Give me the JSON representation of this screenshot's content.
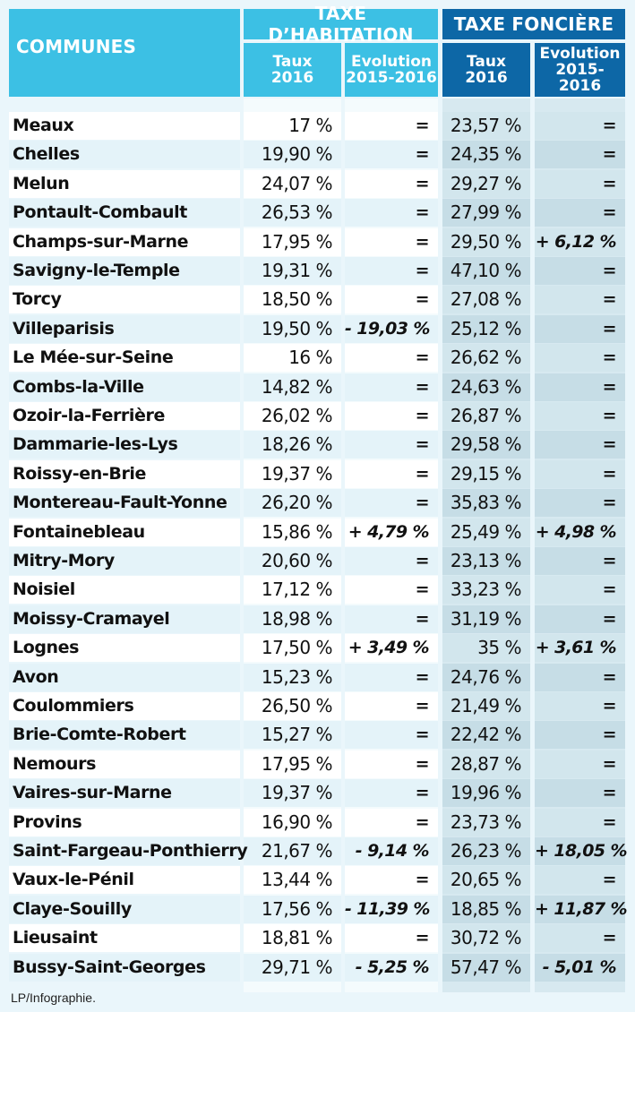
{
  "header": {
    "communes": "COMMUNES",
    "th_group": "TAXE D’HABITATION",
    "tf_group": "TAXE FONCIÈRE",
    "taux": "Taux",
    "year": "2016",
    "evolution": "Evolution",
    "period": "2015-2016"
  },
  "colors": {
    "light_blue": "#3cc0e4",
    "dark_blue": "#0d67a6",
    "page_bg": "#eaf6fb",
    "white_cell": "#ffffff",
    "tf_cell": "#cfe4ec"
  },
  "source": "LP/Infographie.",
  "chart_data": {
    "type": "table",
    "columns": [
      "COMMUNES",
      "Taxe d’habitation – Taux 2016",
      "Taxe d’habitation – Evolution 2015-2016",
      "Taxe foncière – Taux 2016",
      "Taxe foncière – Evolution 2015-2016"
    ],
    "rows": [
      {
        "commune": "Meaux",
        "th_rate": "17 %",
        "th_evo": "=",
        "tf_rate": "23,57 %",
        "tf_evo": "="
      },
      {
        "commune": "Chelles",
        "th_rate": "19,90 %",
        "th_evo": "=",
        "tf_rate": "24,35 %",
        "tf_evo": "="
      },
      {
        "commune": "Melun",
        "th_rate": "24,07 %",
        "th_evo": "=",
        "tf_rate": "29,27 %",
        "tf_evo": "="
      },
      {
        "commune": "Pontault-Combault",
        "th_rate": "26,53 %",
        "th_evo": "=",
        "tf_rate": "27,99 %",
        "tf_evo": "="
      },
      {
        "commune": "Champs-sur-Marne",
        "th_rate": "17,95 %",
        "th_evo": "=",
        "tf_rate": "29,50 %",
        "tf_evo": "+ 6,12 %"
      },
      {
        "commune": "Savigny-le-Temple",
        "th_rate": "19,31 %",
        "th_evo": "=",
        "tf_rate": "47,10 %",
        "tf_evo": "="
      },
      {
        "commune": "Torcy",
        "th_rate": "18,50 %",
        "th_evo": "=",
        "tf_rate": "27,08 %",
        "tf_evo": "="
      },
      {
        "commune": "Villeparisis",
        "th_rate": "19,50 %",
        "th_evo": "- 19,03 %",
        "tf_rate": "25,12 %",
        "tf_evo": "="
      },
      {
        "commune": "Le Mée-sur-Seine",
        "th_rate": "16 %",
        "th_evo": "=",
        "tf_rate": "26,62 %",
        "tf_evo": "="
      },
      {
        "commune": "Combs-la-Ville",
        "th_rate": "14,82 %",
        "th_evo": "=",
        "tf_rate": "24,63 %",
        "tf_evo": "="
      },
      {
        "commune": "Ozoir-la-Ferrière",
        "th_rate": "26,02 %",
        "th_evo": "=",
        "tf_rate": "26,87 %",
        "tf_evo": "="
      },
      {
        "commune": "Dammarie-les-Lys",
        "th_rate": "18,26 %",
        "th_evo": "=",
        "tf_rate": "29,58 %",
        "tf_evo": "="
      },
      {
        "commune": "Roissy-en-Brie",
        "th_rate": "19,37 %",
        "th_evo": "=",
        "tf_rate": "29,15 %",
        "tf_evo": "="
      },
      {
        "commune": "Montereau-Fault-Yonne",
        "th_rate": "26,20 %",
        "th_evo": "=",
        "tf_rate": "35,83 %",
        "tf_evo": "="
      },
      {
        "commune": "Fontainebleau",
        "th_rate": "15,86 %",
        "th_evo": "+ 4,79 %",
        "tf_rate": "25,49 %",
        "tf_evo": "+ 4,98 %"
      },
      {
        "commune": "Mitry-Mory",
        "th_rate": "20,60 %",
        "th_evo": "=",
        "tf_rate": "23,13 %",
        "tf_evo": "="
      },
      {
        "commune": "Noisiel",
        "th_rate": "17,12 %",
        "th_evo": "=",
        "tf_rate": "33,23 %",
        "tf_evo": "="
      },
      {
        "commune": "Moissy-Cramayel",
        "th_rate": "18,98 %",
        "th_evo": "=",
        "tf_rate": "31,19 %",
        "tf_evo": "="
      },
      {
        "commune": "Lognes",
        "th_rate": "17,50 %",
        "th_evo": "+ 3,49 %",
        "tf_rate": "35 %",
        "tf_evo": "+ 3,61 %"
      },
      {
        "commune": "Avon",
        "th_rate": "15,23 %",
        "th_evo": "=",
        "tf_rate": "24,76 %",
        "tf_evo": "="
      },
      {
        "commune": "Coulommiers",
        "th_rate": "26,50 %",
        "th_evo": "=",
        "tf_rate": "21,49 %",
        "tf_evo": "="
      },
      {
        "commune": "Brie-Comte-Robert",
        "th_rate": "15,27 %",
        "th_evo": "=",
        "tf_rate": "22,42 %",
        "tf_evo": "="
      },
      {
        "commune": "Nemours",
        "th_rate": "17,95 %",
        "th_evo": "=",
        "tf_rate": "28,87 %",
        "tf_evo": "="
      },
      {
        "commune": "Vaires-sur-Marne",
        "th_rate": "19,37 %",
        "th_evo": "=",
        "tf_rate": "19,96 %",
        "tf_evo": "="
      },
      {
        "commune": "Provins",
        "th_rate": "16,90 %",
        "th_evo": "=",
        "tf_rate": "23,73 %",
        "tf_evo": "="
      },
      {
        "commune": "Saint-Fargeau-Ponthierry",
        "th_rate": "21,67 %",
        "th_evo": "- 9,14 %",
        "tf_rate": "26,23 %",
        "tf_evo": "+ 18,05 %"
      },
      {
        "commune": "Vaux-le-Pénil",
        "th_rate": "13,44 %",
        "th_evo": "=",
        "tf_rate": "20,65 %",
        "tf_evo": "="
      },
      {
        "commune": "Claye-Souilly",
        "th_rate": "17,56 %",
        "th_evo": "- 11,39 %",
        "tf_rate": "18,85 %",
        "tf_evo": "+ 11,87 %"
      },
      {
        "commune": "Lieusaint",
        "th_rate": "18,81 %",
        "th_evo": "=",
        "tf_rate": "30,72 %",
        "tf_evo": "="
      },
      {
        "commune": "Bussy-Saint-Georges",
        "th_rate": "29,71 %",
        "th_evo": "- 5,25 %",
        "tf_rate": "57,47 %",
        "tf_evo": "- 5,01 %"
      }
    ]
  }
}
